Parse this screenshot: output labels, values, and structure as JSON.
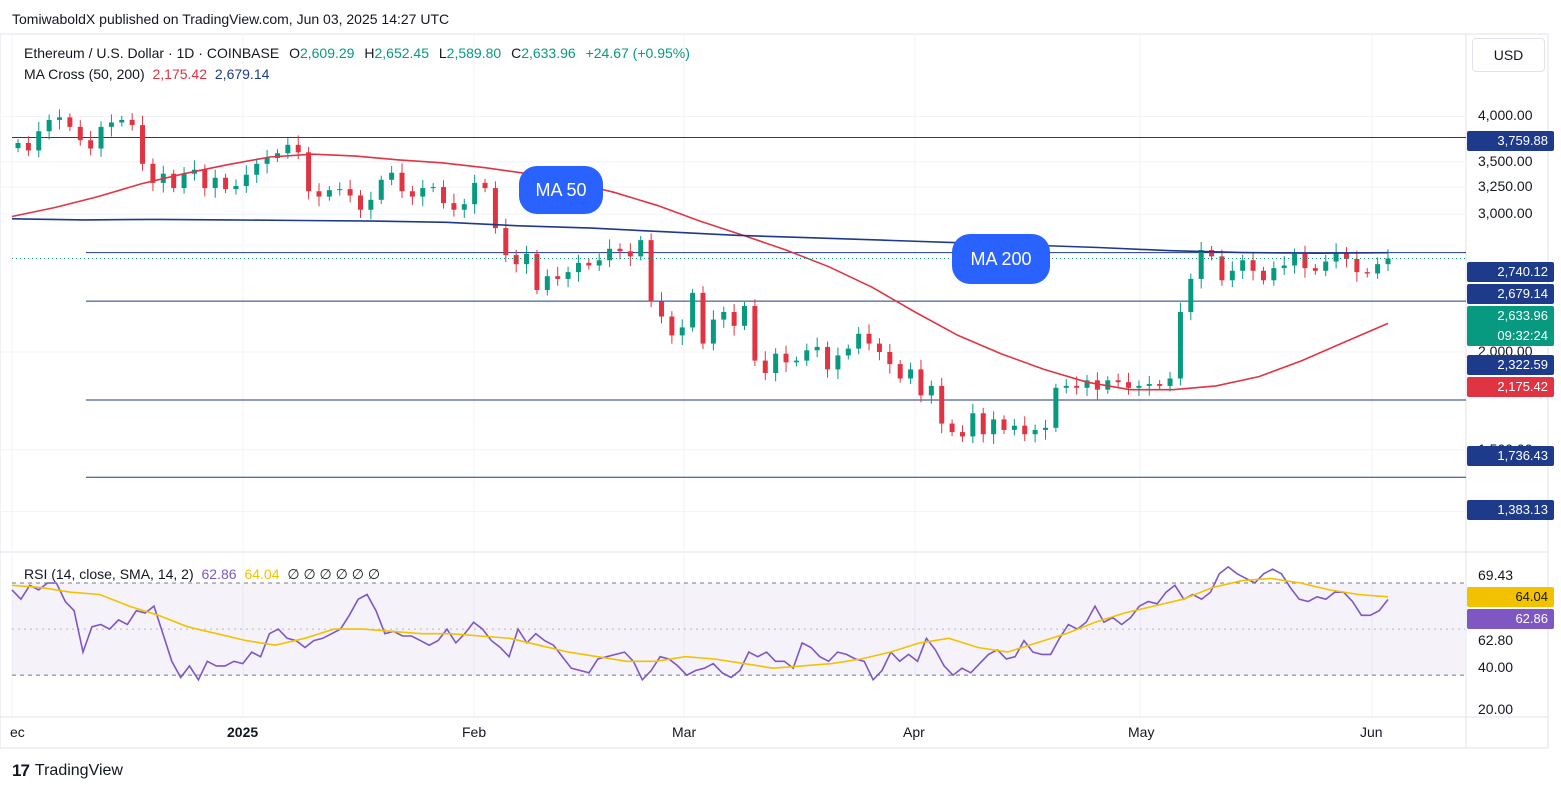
{
  "header": {
    "published": "TomiwaboldX published on TradingView.com, Jun 03, 2025 14:27 UTC",
    "symbol": "Ethereum / U.S. Dollar · 1D · COINBASE",
    "open_label": "O",
    "open": "2,609.29",
    "high_label": "H",
    "high": "2,652.45",
    "low_label": "L",
    "low": "2,589.80",
    "close_label": "C",
    "close": "2,633.96",
    "change": "+24.67 (+0.95%)",
    "ma_label": "MA Cross (50, 200)",
    "ma50_value": "2,175.42",
    "ma200_value": "2,679.14",
    "rsi_label": "RSI (14, close, SMA, 14, 2)",
    "rsi_value": "62.86",
    "rsi_sma_value": "64.04",
    "rsi_extra": "∅ ∅ ∅ ∅ ∅ ∅"
  },
  "currency_button": "USD",
  "brand": "TradingView",
  "brand_mark": "17",
  "callouts": {
    "ma50": "MA 50",
    "ma200": "MA 200"
  },
  "colors": {
    "up": "#089981",
    "down": "#e13443",
    "ma50": "#e13443",
    "ma200": "#1e3a8a",
    "hline": "#1e3a8a",
    "rsi": "#7e57c2",
    "rsi_sma": "#f2c200",
    "callout": "#2962ff"
  },
  "chart_data": {
    "type": "candlestick",
    "title": "Ethereum / U.S. Dollar · 1D · COINBASE",
    "x_tick_labels": [
      "ec",
      "2025",
      "Feb",
      "Mar",
      "Apr",
      "May",
      "Jun"
    ],
    "y_tick_labels": [
      "4,000.00",
      "3,500.00",
      "3,250.00",
      "3,000.00",
      "2,000.00",
      "1,500.00",
      "1,250.00"
    ],
    "y_ticks": [
      4000,
      3500,
      3250,
      3000,
      2000,
      1500,
      1250
    ],
    "ylim": [
      1150,
      4350
    ],
    "scale": "log",
    "horizontal_levels": [
      {
        "value": 3759.88,
        "label": "3,759.88"
      },
      {
        "value": 2679.14,
        "label": "2,679.14"
      },
      {
        "value": 2322.59,
        "label": "2,322.59"
      },
      {
        "value": 1736.43,
        "label": "1,736.43"
      },
      {
        "value": 1383.13,
        "label": "1,383.13"
      }
    ],
    "price_badges": [
      {
        "label": "2,740.12",
        "value": 2740.12,
        "color": "#1e3a8a"
      },
      {
        "label": "2,679.14",
        "value": 2679.14,
        "color": "#1e3a8a"
      },
      {
        "label": "2,633.96",
        "value": 2633.96,
        "color": "#089981",
        "sub": "09:32:24"
      },
      {
        "label": "2,322.59",
        "value": 2322.59,
        "color": "#1e3a8a"
      },
      {
        "label": "2,175.42",
        "value": 2175.42,
        "color": "#e13443"
      },
      {
        "label": "1,736.43",
        "value": 1736.43,
        "color": "#1e3a8a"
      },
      {
        "label": "1,383.13",
        "value": 1383.13,
        "color": "#1e3a8a"
      }
    ],
    "closes": [
      3700,
      3620,
      3830,
      3960,
      3990,
      3880,
      3730,
      3640,
      3880,
      3930,
      3960,
      3900,
      3480,
      3290,
      3380,
      3240,
      3380,
      3420,
      3240,
      3340,
      3230,
      3260,
      3370,
      3480,
      3540,
      3590,
      3680,
      3600,
      3210,
      3160,
      3220,
      3230,
      3170,
      3040,
      3130,
      3320,
      3390,
      3210,
      3160,
      3240,
      3250,
      3100,
      3040,
      3090,
      3290,
      3240,
      2880,
      2660,
      2590,
      2670,
      2400,
      2500,
      2480,
      2530,
      2600,
      2580,
      2620,
      2710,
      2690,
      2650,
      2780,
      2320,
      2220,
      2100,
      2150,
      2380,
      2050,
      2200,
      2250,
      2160,
      2290,
      1950,
      1880,
      1990,
      1940,
      1950,
      2010,
      2030,
      1900,
      1980,
      2020,
      2110,
      2050,
      2000,
      1930,
      1850,
      1900,
      1760,
      1810,
      1620,
      1580,
      1560,
      1670,
      1570,
      1640,
      1590,
      1610,
      1570,
      1590,
      1600,
      1800,
      1810,
      1800,
      1840,
      1790,
      1840,
      1830,
      1800,
      1810,
      1820,
      1810,
      1850,
      2250,
      2480,
      2700,
      2650,
      2470,
      2540,
      2620,
      2540,
      2470,
      2560,
      2580,
      2670,
      2560,
      2540,
      2610,
      2680,
      2630,
      2530,
      2520,
      2590,
      2633.96
    ],
    "ma50": [
      2980,
      3060,
      3160,
      3280,
      3380,
      3470,
      3550,
      3580,
      3560,
      3520,
      3490,
      3440,
      3380,
      3300,
      3200,
      3080,
      2940,
      2820,
      2700,
      2570,
      2420,
      2250,
      2100,
      1990,
      1900,
      1830,
      1790,
      1790,
      1810,
      1860,
      1950,
      2060,
      2175.42
    ],
    "ma200": [
      2960,
      2950,
      2955,
      2950,
      2945,
      2940,
      2930,
      2900,
      2880,
      2850,
      2820,
      2800,
      2780,
      2760,
      2740,
      2720,
      2695,
      2680,
      2675,
      2679.14
    ],
    "rsi": {
      "panel_ticks": [
        "69.43",
        "64.04",
        "62.86",
        "62.80",
        "40.00",
        "20.00"
      ],
      "values": [
        67,
        63,
        69,
        67,
        70,
        70,
        62,
        58,
        40,
        51,
        52,
        50,
        54,
        52,
        58,
        57,
        60,
        48,
        36,
        29,
        34,
        28,
        36,
        34,
        34,
        36,
        35,
        40,
        38,
        48,
        50,
        46,
        45,
        42,
        45,
        46,
        48,
        50,
        56,
        63,
        65,
        58,
        48,
        49,
        47,
        47,
        45,
        43,
        45,
        50,
        44,
        48,
        53,
        50,
        45,
        42,
        38,
        50,
        44,
        48,
        45,
        43,
        38,
        33,
        32,
        31,
        37,
        38,
        39,
        40,
        36,
        28,
        32,
        38,
        37,
        34,
        30,
        32,
        33,
        35,
        31,
        29,
        32,
        40,
        38,
        40,
        36,
        36,
        33,
        44,
        42,
        38,
        36,
        40,
        39,
        37,
        36,
        28,
        32,
        40,
        36,
        39,
        36,
        46,
        41,
        34,
        30,
        33,
        31,
        35,
        39,
        41,
        37,
        38,
        45,
        40,
        39,
        39,
        46,
        52,
        50,
        53,
        60,
        53,
        55,
        52,
        55,
        60,
        62,
        61,
        66,
        69,
        63,
        65,
        63,
        66,
        74,
        77,
        74,
        72,
        70,
        74,
        76,
        74,
        68,
        63,
        62,
        64,
        63,
        66,
        66,
        62,
        56,
        56,
        58,
        62.86
      ],
      "sma": [
        69,
        68,
        66,
        65,
        60,
        56,
        51,
        48,
        45,
        43,
        46,
        50,
        50,
        49,
        48,
        48,
        47,
        46,
        43,
        40,
        38,
        36,
        36,
        38,
        37,
        35,
        33,
        34,
        35,
        37,
        40,
        44,
        46,
        42,
        40,
        44,
        48,
        53,
        57,
        60,
        63,
        68,
        71,
        72,
        70,
        67,
        65,
        64.04
      ],
      "overbought": 70,
      "oversold": 30
    }
  }
}
